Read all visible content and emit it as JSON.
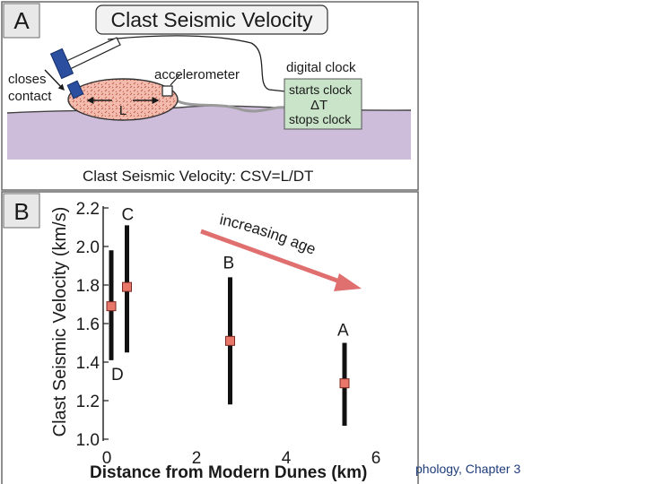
{
  "panel_a": {
    "letter": "A",
    "title": "Clast Seismic Velocity",
    "labels": {
      "closes": "closes",
      "contact": "contact",
      "accelerometer": "accelerometer",
      "digital_clock": "digital clock",
      "starts_clock": "starts clock",
      "delta_t": "ΔT",
      "stops_clock": "stops clock",
      "length": "L"
    },
    "formula": "Clast Seismic Velocity: CSV=L/DT",
    "colors": {
      "clock_box": "#c9e4c9",
      "ground": "#cdbcda",
      "clast": "#f2b7a6",
      "hammer": "#2b4f9e"
    }
  },
  "panel_b": {
    "letter": "B",
    "annotation": "increasing age",
    "arrow_color": "#e07070"
  },
  "chart_data": {
    "type": "scatter",
    "xlabel": "Distance from Modern Dunes (km)",
    "ylabel": "Clast Seismic Velocity (km/s)",
    "xlim": [
      0,
      6
    ],
    "ylim": [
      1.0,
      2.2
    ],
    "x_ticks": [
      0,
      2,
      4,
      6
    ],
    "x_tick_labels": [
      "0",
      "2",
      "4",
      "6"
    ],
    "y_ticks": [
      1.0,
      1.2,
      1.4,
      1.6,
      1.8,
      2.0,
      2.2
    ],
    "y_tick_labels": [
      "1.0",
      "1.2",
      "1.4",
      "1.6",
      "1.8",
      "2.0",
      "2.2"
    ],
    "marker_color": "#e8776a",
    "points": [
      {
        "label": "D",
        "x": 0.1,
        "y": 1.69,
        "ymin": 1.41,
        "ymax": 1.98
      },
      {
        "label": "C",
        "x": 0.45,
        "y": 1.79,
        "ymin": 1.45,
        "ymax": 2.11
      },
      {
        "label": "B",
        "x": 2.75,
        "y": 1.51,
        "ymin": 1.18,
        "ymax": 1.84
      },
      {
        "label": "A",
        "x": 5.3,
        "y": 1.29,
        "ymin": 1.07,
        "ymax": 1.5
      }
    ]
  },
  "footer": {
    "text": "phology, Chapter 3"
  }
}
